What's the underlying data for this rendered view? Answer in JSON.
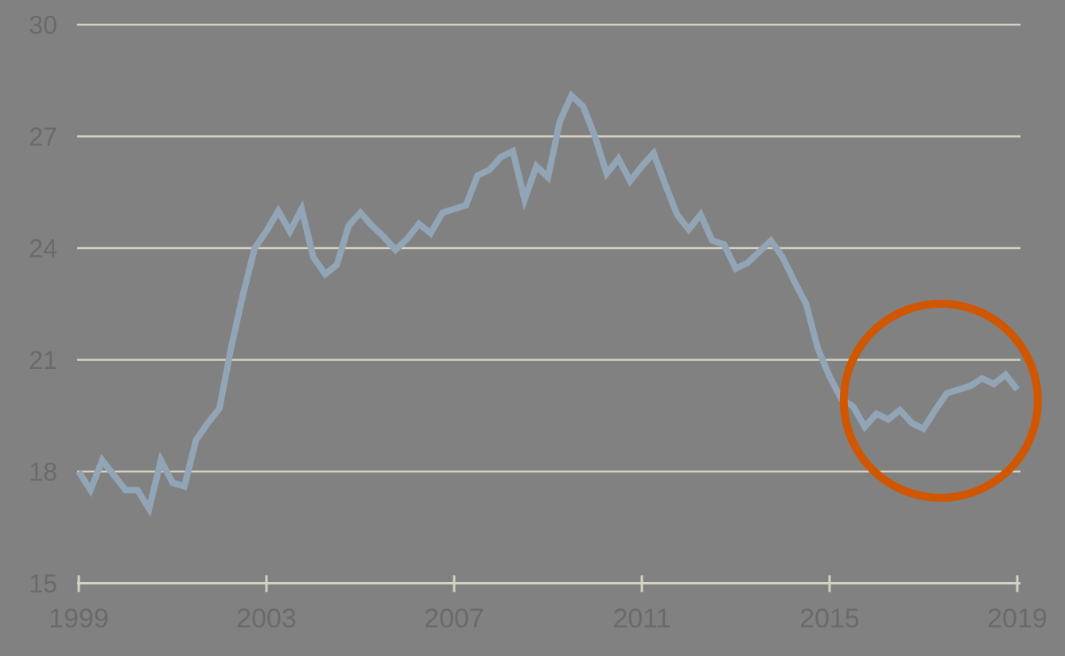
{
  "page": {
    "background": "#818181",
    "title": ""
  },
  "chart_data": {
    "type": "line",
    "title": "",
    "subtitle": "",
    "xlabel": "",
    "ylabel": "",
    "legend": "none",
    "frequency": "quarterly",
    "start_period": "1999 Q1",
    "end_period": "2019 Q1",
    "xlim": [
      1999,
      2019
    ],
    "ylim": [
      15,
      30
    ],
    "yticks": [
      30,
      27,
      24,
      21,
      18,
      15
    ],
    "ytick_labels": [
      "30",
      "27",
      "24",
      "21",
      "18",
      "15"
    ],
    "xticks": [
      1999,
      2003,
      2007,
      2011,
      2015,
      2019
    ],
    "xtick_labels": [
      "1999",
      "2003",
      "2007",
      "2011",
      "2015",
      "2019"
    ],
    "grid": "horizontal cream gridlines at 18, 21, 24, 27, 30; cream baseline axis with year ticks at 15",
    "series": [
      {
        "name": "main-series",
        "color": "#92a5b6",
        "stroke_width": 8,
        "values": [
          18.0,
          17.5,
          18.3,
          17.9,
          17.5,
          17.5,
          17.0,
          18.3,
          17.7,
          17.6,
          18.85,
          19.3,
          19.7,
          21.35,
          22.75,
          24.0,
          24.45,
          25.0,
          24.45,
          25.05,
          23.75,
          23.3,
          23.55,
          24.6,
          24.95,
          24.6,
          24.3,
          23.95,
          24.25,
          24.65,
          24.4,
          24.95,
          25.05,
          25.15,
          25.95,
          26.1,
          26.45,
          26.6,
          25.3,
          26.2,
          25.9,
          27.4,
          28.1,
          27.8,
          27.0,
          26.0,
          26.4,
          25.8,
          26.2,
          26.55,
          25.7,
          24.9,
          24.5,
          24.9,
          24.2,
          24.1,
          23.45,
          23.6,
          23.9,
          24.2,
          23.75,
          23.1,
          22.5,
          21.3,
          20.55,
          19.95,
          19.75,
          19.2,
          19.55,
          19.4,
          19.65,
          19.3,
          19.15,
          19.65,
          20.1,
          20.2,
          20.3,
          20.5,
          20.35,
          20.6,
          20.2
        ]
      }
    ],
    "annotations": [
      {
        "type": "circle",
        "purpose": "highlight of recent low plateau (circa 2015-2019)",
        "center_year": 2017.37,
        "center_value": 19.9,
        "radius_px": 122,
        "stroke_width": 10,
        "color": "#d15600"
      }
    ],
    "colors": {
      "background": "#818181",
      "gridline": "#d5d2c3",
      "axis": "#d5d2c3",
      "tick_label": "#6a6a6a",
      "line": "#92a5b6",
      "annotation": "#d15600"
    }
  }
}
